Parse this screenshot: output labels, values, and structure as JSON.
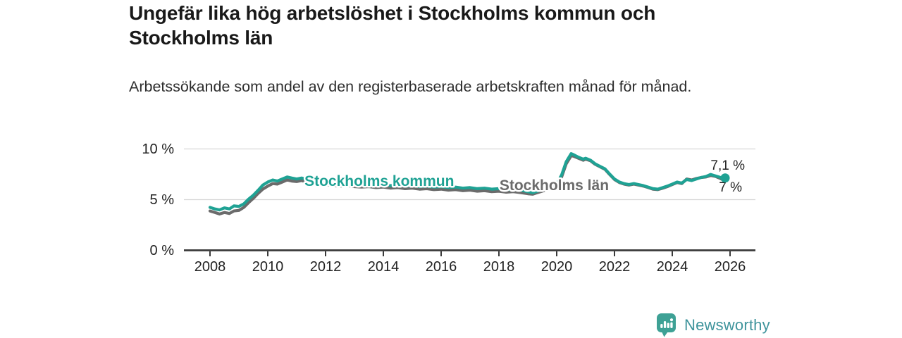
{
  "header": {
    "title": "Ungefär lika hög arbetslöshet i Stockholms kommun och Stockholms län",
    "subtitle": "Arbetssökande som andel av den registerbaserade arbetskraften månad för månad."
  },
  "footer": {
    "brand": "Newsworthy",
    "logo_icon": "newsworthy-speech-bubble-bar-chart-icon"
  },
  "colors": {
    "kommun_line": "#1fa294",
    "lan_line": "#6b6b6b",
    "title_text": "#191919",
    "body_text": "#2d2d2d",
    "axis": "#3a3a3a",
    "grid": "#d8d8d8",
    "brand_teal": "#3f949c"
  },
  "chart_data": {
    "type": "line",
    "title": "Ungefär lika hög arbetslöshet i Stockholms kommun och Stockholms län",
    "subtitle": "Arbetssökande som andel av den registerbaserade arbetskraften månad för månad.",
    "unit": "%",
    "grid": "horizontal-only",
    "legend_position": "inline-labels-on-lines",
    "x_axis": {
      "label": "",
      "range": [
        2008,
        2026.8
      ],
      "ticks": [
        {
          "value": 2008,
          "label": "2008"
        },
        {
          "value": 2010,
          "label": "2010"
        },
        {
          "value": 2012,
          "label": "2012"
        },
        {
          "value": 2014,
          "label": "2014"
        },
        {
          "value": 2016,
          "label": "2016"
        },
        {
          "value": 2018,
          "label": "2018"
        },
        {
          "value": 2020,
          "label": "2020"
        },
        {
          "value": 2022,
          "label": "2022"
        },
        {
          "value": 2024,
          "label": "2024"
        },
        {
          "value": 2026,
          "label": "2026"
        }
      ]
    },
    "y_axis": {
      "label": "",
      "range": [
        0,
        10
      ],
      "ticks": [
        {
          "value": 0,
          "label": "0 %"
        },
        {
          "value": 5,
          "label": "5 %"
        },
        {
          "value": 10,
          "label": "10 %"
        }
      ]
    },
    "series": [
      {
        "name": "Stockholms län",
        "color": "#6b6b6b",
        "end_label": "7 %",
        "end_dot": false,
        "inline_label": {
          "year": 2018.02,
          "value": 5.9
        },
        "points": [
          [
            2008.0,
            3.85
          ],
          [
            2008.17,
            3.7
          ],
          [
            2008.33,
            3.55
          ],
          [
            2008.5,
            3.7
          ],
          [
            2008.67,
            3.6
          ],
          [
            2008.83,
            3.85
          ],
          [
            2009.0,
            3.9
          ],
          [
            2009.17,
            4.2
          ],
          [
            2009.33,
            4.65
          ],
          [
            2009.5,
            5.1
          ],
          [
            2009.67,
            5.6
          ],
          [
            2009.83,
            6.0
          ],
          [
            2010.0,
            6.3
          ],
          [
            2010.17,
            6.55
          ],
          [
            2010.33,
            6.5
          ],
          [
            2010.5,
            6.7
          ],
          [
            2010.67,
            6.9
          ],
          [
            2010.83,
            6.8
          ],
          [
            2011.0,
            6.75
          ],
          [
            2011.17,
            6.85
          ],
          [
            2011.33,
            6.7
          ],
          [
            2011.5,
            6.8
          ],
          [
            2011.67,
            6.65
          ],
          [
            2011.83,
            6.55
          ],
          [
            2012.0,
            6.45
          ],
          [
            2012.25,
            6.35
          ],
          [
            2012.5,
            6.3
          ],
          [
            2012.75,
            6.35
          ],
          [
            2013.0,
            6.25
          ],
          [
            2013.25,
            6.2
          ],
          [
            2013.5,
            6.25
          ],
          [
            2013.75,
            6.15
          ],
          [
            2014.0,
            6.2
          ],
          [
            2014.25,
            6.1
          ],
          [
            2014.5,
            6.15
          ],
          [
            2014.75,
            6.05
          ],
          [
            2015.0,
            6.1
          ],
          [
            2015.25,
            6.0
          ],
          [
            2015.5,
            6.05
          ],
          [
            2015.75,
            5.95
          ],
          [
            2016.0,
            6.0
          ],
          [
            2016.25,
            5.9
          ],
          [
            2016.5,
            5.95
          ],
          [
            2016.75,
            5.85
          ],
          [
            2017.0,
            5.9
          ],
          [
            2017.25,
            5.8
          ],
          [
            2017.5,
            5.85
          ],
          [
            2017.75,
            5.75
          ],
          [
            2018.0,
            5.8
          ],
          [
            2018.25,
            5.7
          ],
          [
            2018.5,
            5.75
          ],
          [
            2018.75,
            5.65
          ],
          [
            2019.0,
            5.55
          ],
          [
            2019.17,
            5.5
          ],
          [
            2019.33,
            5.65
          ],
          [
            2019.5,
            5.8
          ],
          [
            2019.67,
            5.95
          ],
          [
            2019.83,
            6.15
          ],
          [
            2020.0,
            6.35
          ],
          [
            2020.17,
            7.2
          ],
          [
            2020.33,
            8.5
          ],
          [
            2020.5,
            9.3
          ],
          [
            2020.58,
            9.25
          ],
          [
            2020.75,
            9.05
          ],
          [
            2020.92,
            8.85
          ],
          [
            2021.0,
            8.95
          ],
          [
            2021.17,
            8.8
          ],
          [
            2021.33,
            8.45
          ],
          [
            2021.5,
            8.2
          ],
          [
            2021.67,
            7.95
          ],
          [
            2021.83,
            7.45
          ],
          [
            2022.0,
            6.95
          ],
          [
            2022.17,
            6.65
          ],
          [
            2022.33,
            6.5
          ],
          [
            2022.5,
            6.4
          ],
          [
            2022.67,
            6.5
          ],
          [
            2022.83,
            6.4
          ],
          [
            2023.0,
            6.3
          ],
          [
            2023.17,
            6.15
          ],
          [
            2023.33,
            6.0
          ],
          [
            2023.5,
            5.95
          ],
          [
            2023.67,
            6.1
          ],
          [
            2023.83,
            6.25
          ],
          [
            2024.0,
            6.45
          ],
          [
            2024.17,
            6.65
          ],
          [
            2024.33,
            6.55
          ],
          [
            2024.5,
            7.0
          ],
          [
            2024.67,
            6.9
          ],
          [
            2024.83,
            7.05
          ],
          [
            2025.0,
            7.15
          ],
          [
            2025.17,
            7.2
          ],
          [
            2025.33,
            7.35
          ],
          [
            2025.5,
            7.25
          ],
          [
            2025.67,
            7.05
          ],
          [
            2025.75,
            6.9
          ],
          [
            2025.83,
            7.0
          ]
        ]
      },
      {
        "name": "Stockholms kommun",
        "color": "#1fa294",
        "end_label": "7,1 %",
        "end_dot": true,
        "inline_label": {
          "year": 2011.27,
          "value": 6.32
        },
        "points": [
          [
            2008.0,
            4.2
          ],
          [
            2008.17,
            4.05
          ],
          [
            2008.33,
            3.95
          ],
          [
            2008.5,
            4.15
          ],
          [
            2008.67,
            4.05
          ],
          [
            2008.83,
            4.35
          ],
          [
            2009.0,
            4.3
          ],
          [
            2009.17,
            4.55
          ],
          [
            2009.33,
            5.0
          ],
          [
            2009.5,
            5.4
          ],
          [
            2009.67,
            5.9
          ],
          [
            2009.83,
            6.4
          ],
          [
            2010.0,
            6.7
          ],
          [
            2010.17,
            6.9
          ],
          [
            2010.33,
            6.8
          ],
          [
            2010.5,
            7.0
          ],
          [
            2010.67,
            7.2
          ],
          [
            2010.83,
            7.1
          ],
          [
            2011.0,
            7.0
          ],
          [
            2011.17,
            7.1
          ],
          [
            2011.33,
            6.95
          ],
          [
            2011.5,
            7.05
          ],
          [
            2011.67,
            6.9
          ],
          [
            2011.83,
            6.8
          ],
          [
            2012.0,
            6.7
          ],
          [
            2012.25,
            6.6
          ],
          [
            2012.5,
            6.55
          ],
          [
            2012.75,
            6.6
          ],
          [
            2013.0,
            6.5
          ],
          [
            2013.25,
            6.45
          ],
          [
            2013.5,
            6.5
          ],
          [
            2013.75,
            6.4
          ],
          [
            2014.0,
            6.45
          ],
          [
            2014.25,
            6.35
          ],
          [
            2014.5,
            6.4
          ],
          [
            2014.75,
            6.3
          ],
          [
            2015.0,
            6.35
          ],
          [
            2015.25,
            6.25
          ],
          [
            2015.5,
            6.3
          ],
          [
            2015.75,
            6.2
          ],
          [
            2016.0,
            6.25
          ],
          [
            2016.25,
            6.15
          ],
          [
            2016.5,
            6.2
          ],
          [
            2016.75,
            6.1
          ],
          [
            2017.0,
            6.15
          ],
          [
            2017.25,
            6.05
          ],
          [
            2017.5,
            6.1
          ],
          [
            2017.75,
            6.0
          ],
          [
            2018.0,
            6.05
          ],
          [
            2018.25,
            5.95
          ],
          [
            2018.5,
            6.0
          ],
          [
            2018.75,
            5.9
          ],
          [
            2019.0,
            5.75
          ],
          [
            2019.17,
            5.65
          ],
          [
            2019.33,
            5.8
          ],
          [
            2019.5,
            5.95
          ],
          [
            2019.67,
            6.1
          ],
          [
            2019.83,
            6.3
          ],
          [
            2020.0,
            6.5
          ],
          [
            2020.17,
            7.4
          ],
          [
            2020.33,
            8.7
          ],
          [
            2020.5,
            9.5
          ],
          [
            2020.58,
            9.4
          ],
          [
            2020.75,
            9.15
          ],
          [
            2020.92,
            8.95
          ],
          [
            2021.0,
            9.05
          ],
          [
            2021.17,
            8.85
          ],
          [
            2021.33,
            8.5
          ],
          [
            2021.5,
            8.25
          ],
          [
            2021.67,
            8.0
          ],
          [
            2021.83,
            7.5
          ],
          [
            2022.0,
            7.0
          ],
          [
            2022.17,
            6.7
          ],
          [
            2022.33,
            6.55
          ],
          [
            2022.5,
            6.45
          ],
          [
            2022.67,
            6.55
          ],
          [
            2022.83,
            6.45
          ],
          [
            2023.0,
            6.35
          ],
          [
            2023.17,
            6.2
          ],
          [
            2023.33,
            6.05
          ],
          [
            2023.5,
            6.0
          ],
          [
            2023.67,
            6.15
          ],
          [
            2023.83,
            6.3
          ],
          [
            2024.0,
            6.5
          ],
          [
            2024.17,
            6.7
          ],
          [
            2024.33,
            6.6
          ],
          [
            2024.5,
            6.95
          ],
          [
            2024.67,
            6.85
          ],
          [
            2024.83,
            7.0
          ],
          [
            2025.0,
            7.15
          ],
          [
            2025.17,
            7.25
          ],
          [
            2025.33,
            7.45
          ],
          [
            2025.5,
            7.3
          ],
          [
            2025.67,
            7.15
          ],
          [
            2025.75,
            7.0
          ],
          [
            2025.83,
            7.1
          ]
        ]
      }
    ]
  }
}
